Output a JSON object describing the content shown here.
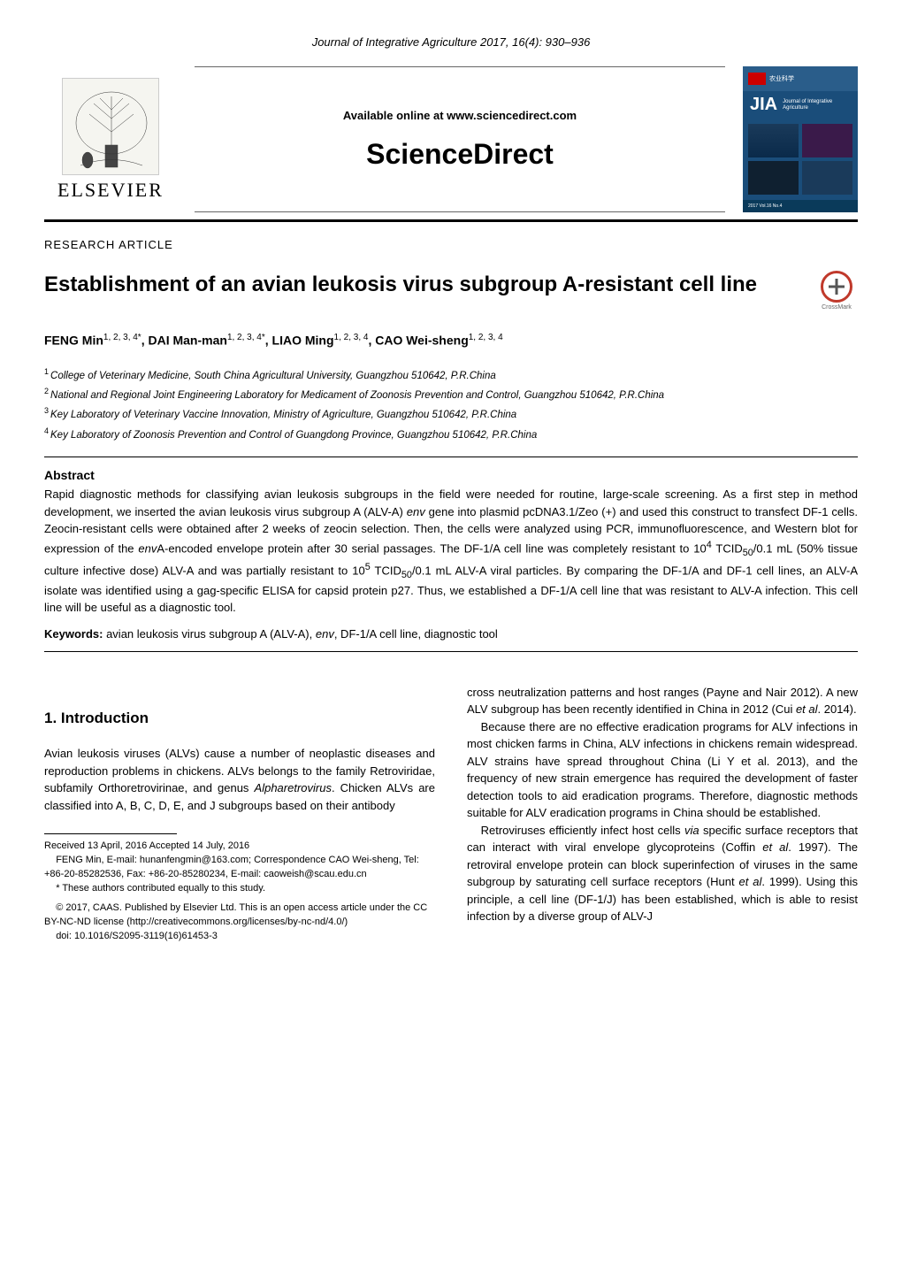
{
  "journal_header": "Journal of Integrative Agriculture  2017, 16(4): 930–936",
  "masthead": {
    "elsevier_text": "ELSEVIER",
    "available_text": "Available online at www.sciencedirect.com",
    "sciencedirect": "ScienceDirect",
    "jia": {
      "title": "JIA",
      "subtitle": "Journal of Integrative Agriculture",
      "footer": "2017  Vol.16  No.4"
    },
    "crossmark_label": "CrossMark"
  },
  "article_type": "RESEARCH  ARTICLE",
  "title": "Establishment of an avian leukosis virus subgroup A-resistant cell line",
  "authors_html": "FENG Min<sup>1, 2, 3, 4*</sup>, DAI Man-man<sup>1, 2, 3, 4*</sup>, LIAO Ming<sup>1, 2, 3, 4</sup>, CAO Wei-sheng<sup>1, 2, 3, 4</sup>",
  "affiliations": [
    {
      "num": "1",
      "text": "College of Veterinary Medicine, South China Agricultural University, Guangzhou 510642, P.R.China"
    },
    {
      "num": "2",
      "text": "National and Regional Joint Engineering Laboratory for Medicament of Zoonosis Prevention and Control, Guangzhou 510642, P.R.China"
    },
    {
      "num": "3",
      "text": "Key Laboratory of Veterinary Vaccine Innovation, Ministry of Agriculture, Guangzhou 510642, P.R.China"
    },
    {
      "num": "4",
      "text": "Key Laboratory of Zoonosis Prevention and Control of Guangdong Province, Guangzhou 510642, P.R.China"
    }
  ],
  "abstract": {
    "heading": "Abstract",
    "text": "Rapid diagnostic methods for classifying avian leukosis subgroups in the field were needed for routine, large-scale screening.  As a first step in method development, we inserted the avian leukosis virus subgroup A (ALV-A) env gene into plasmid pcDNA3.1/Zeo (+) and used this construct to transfect DF-1 cells.  Zeocin-resistant cells were obtained after 2 weeks of zeocin selection.  Then, the cells were analyzed using PCR, immunofluorescence, and Western blot for expression of the envA-encoded envelope protein after 30 serial passages.  The DF-1/A cell line was completely resistant to 10⁴ TCID₅₀/0.1 mL (50% tissue culture infective dose) ALV-A and was partially resistant to 10⁵ TCID₅₀/0.1 mL ALV-A viral particles.   By comparing the DF-1/A and DF-1 cell lines, an ALV-A isolate was identified using a gag-specific ELISA for capsid protein p27.  Thus, we established a DF-1/A cell line that was resistant to ALV-A infection.  This cell line will be useful as a diagnostic tool."
  },
  "keywords": {
    "label": "Keywords:",
    "text": " avian leukosis virus subgroup A (ALV-A), env, DF-1/A cell line, diagnostic tool"
  },
  "introduction": {
    "heading": "1. Introduction",
    "left_p1": "Avian leukosis viruses (ALVs) cause a number of neoplastic diseases and reproduction problems in chickens.  ALVs belongs to the family Retroviridae, subfamily Orthoretrovirinae, and genus Alpharetrovirus.  Chicken ALVs are classified into A, B, C, D, E, and J subgroups based on their antibody",
    "right_p1": "cross neutralization patterns and host ranges (Payne and Nair 2012).  A new ALV subgroup has been recently identified in China in 2012 (Cui et al. 2014).",
    "right_p2": "Because there are no effective eradication programs for ALV infections in most chicken farms in China, ALV infections in chickens remain widespread.  ALV strains have spread throughout China (Li Y et al. 2013), and the frequency of new strain emergence has required the development of faster detection tools to aid eradication programs.  Therefore, diagnostic methods suitable for ALV eradication programs in China should be established.",
    "right_p3": "Retroviruses efficiently infect host cells via specific surface receptors that can interact with viral envelope glycoproteins (Coffin et al. 1997).  The retroviral envelope protein can block superinfection of viruses in the same subgroup by saturating cell surface receptors (Hunt et al. 1999).  Using this principle, a cell line (DF-1/J) has been established, which is able to resist infection by a diverse group of ALV-J"
  },
  "footnotes": {
    "received": "Received  13 April, 2016    Accepted  14 July, 2016",
    "correspondence": "FENG Min, E-mail: hunanfengmin@163.com; Correspondence CAO Wei-sheng, Tel: +86-20-85282536, Fax: +86-20-85280234, E-mail: caoweish@scau.edu.cn",
    "equal": "* These authors contributed equally to this study.",
    "copyright": "© 2017, CAAS. Published by Elsevier Ltd. This is an open access article under the CC BY-NC-ND license (http://creativecommons.org/licenses/by-nc-nd/4.0/)",
    "doi": "doi: 10.1016/S2095-3119(16)61453-3"
  },
  "colors": {
    "text": "#000000",
    "bg": "#ffffff",
    "jia_bg": "#1a4d7a",
    "crossmark_ring": "#c0392b"
  },
  "fonts": {
    "body": "Arial",
    "title_size_pt": 18,
    "body_size_pt": 10,
    "abstract_size_pt": 10,
    "footnote_size_pt": 8
  }
}
